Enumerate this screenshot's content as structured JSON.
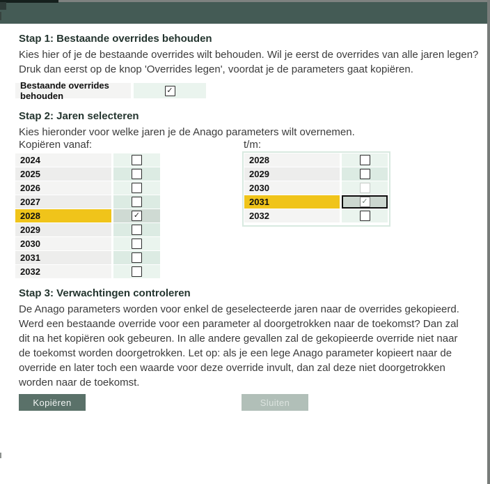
{
  "window": {
    "header_color": "#445b55",
    "frame_color": "#7e8280"
  },
  "icons": {
    "checkbox_checked": "✓"
  },
  "step1": {
    "title": "Stap 1: Bestaande overrides behouden",
    "description": "Kies hier of je de bestaande overrides wilt behouden. Wil je eerst de overrides van alle jaren legen? Druk dan eerst op de knop 'Overrides legen', voordat je de parameters gaat kopiëren.",
    "keep_overrides": {
      "label": "Bestaande overrides behouden",
      "checked": true
    }
  },
  "step2": {
    "title": "Stap 2: Jaren selecteren",
    "description": "Kies hieronder voor welke jaren je de Anago parameters wilt overnemen.",
    "from_label": "Kopiëren vanaf:",
    "to_label": "t/m:",
    "from_years": [
      {
        "year": "2024",
        "checked": false
      },
      {
        "year": "2025",
        "checked": false
      },
      {
        "year": "2026",
        "checked": false
      },
      {
        "year": "2027",
        "checked": false
      },
      {
        "year": "2028",
        "checked": true,
        "selected": true
      },
      {
        "year": "2029",
        "checked": false
      },
      {
        "year": "2030",
        "checked": false
      },
      {
        "year": "2031",
        "checked": false
      },
      {
        "year": "2032",
        "checked": false
      }
    ],
    "to_years": [
      {
        "year": "2028",
        "checked": false
      },
      {
        "year": "2029",
        "checked": false
      },
      {
        "year": "2030",
        "checked": false,
        "disabled": true
      },
      {
        "year": "2031",
        "checked": true,
        "selected": true,
        "focused": true
      },
      {
        "year": "2032",
        "checked": false
      }
    ],
    "selected_row_color": "#f0c41a"
  },
  "step3": {
    "title": "Stap 3: Verwachtingen controleren",
    "description": "De Anago parameters worden voor enkel de geselecteerde jaren naar de overrides gekopieerd. Werd een bestaande override voor een parameter al doorgetrokken naar de toekomst? Dan zal dit na het kopiëren ook gebeuren. In alle andere gevallen zal de gekopieerde override niet naar de toekomst worden doorgetrokken. Let op: als je een lege Anago parameter kopieert naar de override en later toch een waarde voor deze override invult, dan zal deze niet doorgetrokken worden naar de toekomst."
  },
  "buttons": {
    "copy": "Kopiëren",
    "close": "Sluiten"
  }
}
